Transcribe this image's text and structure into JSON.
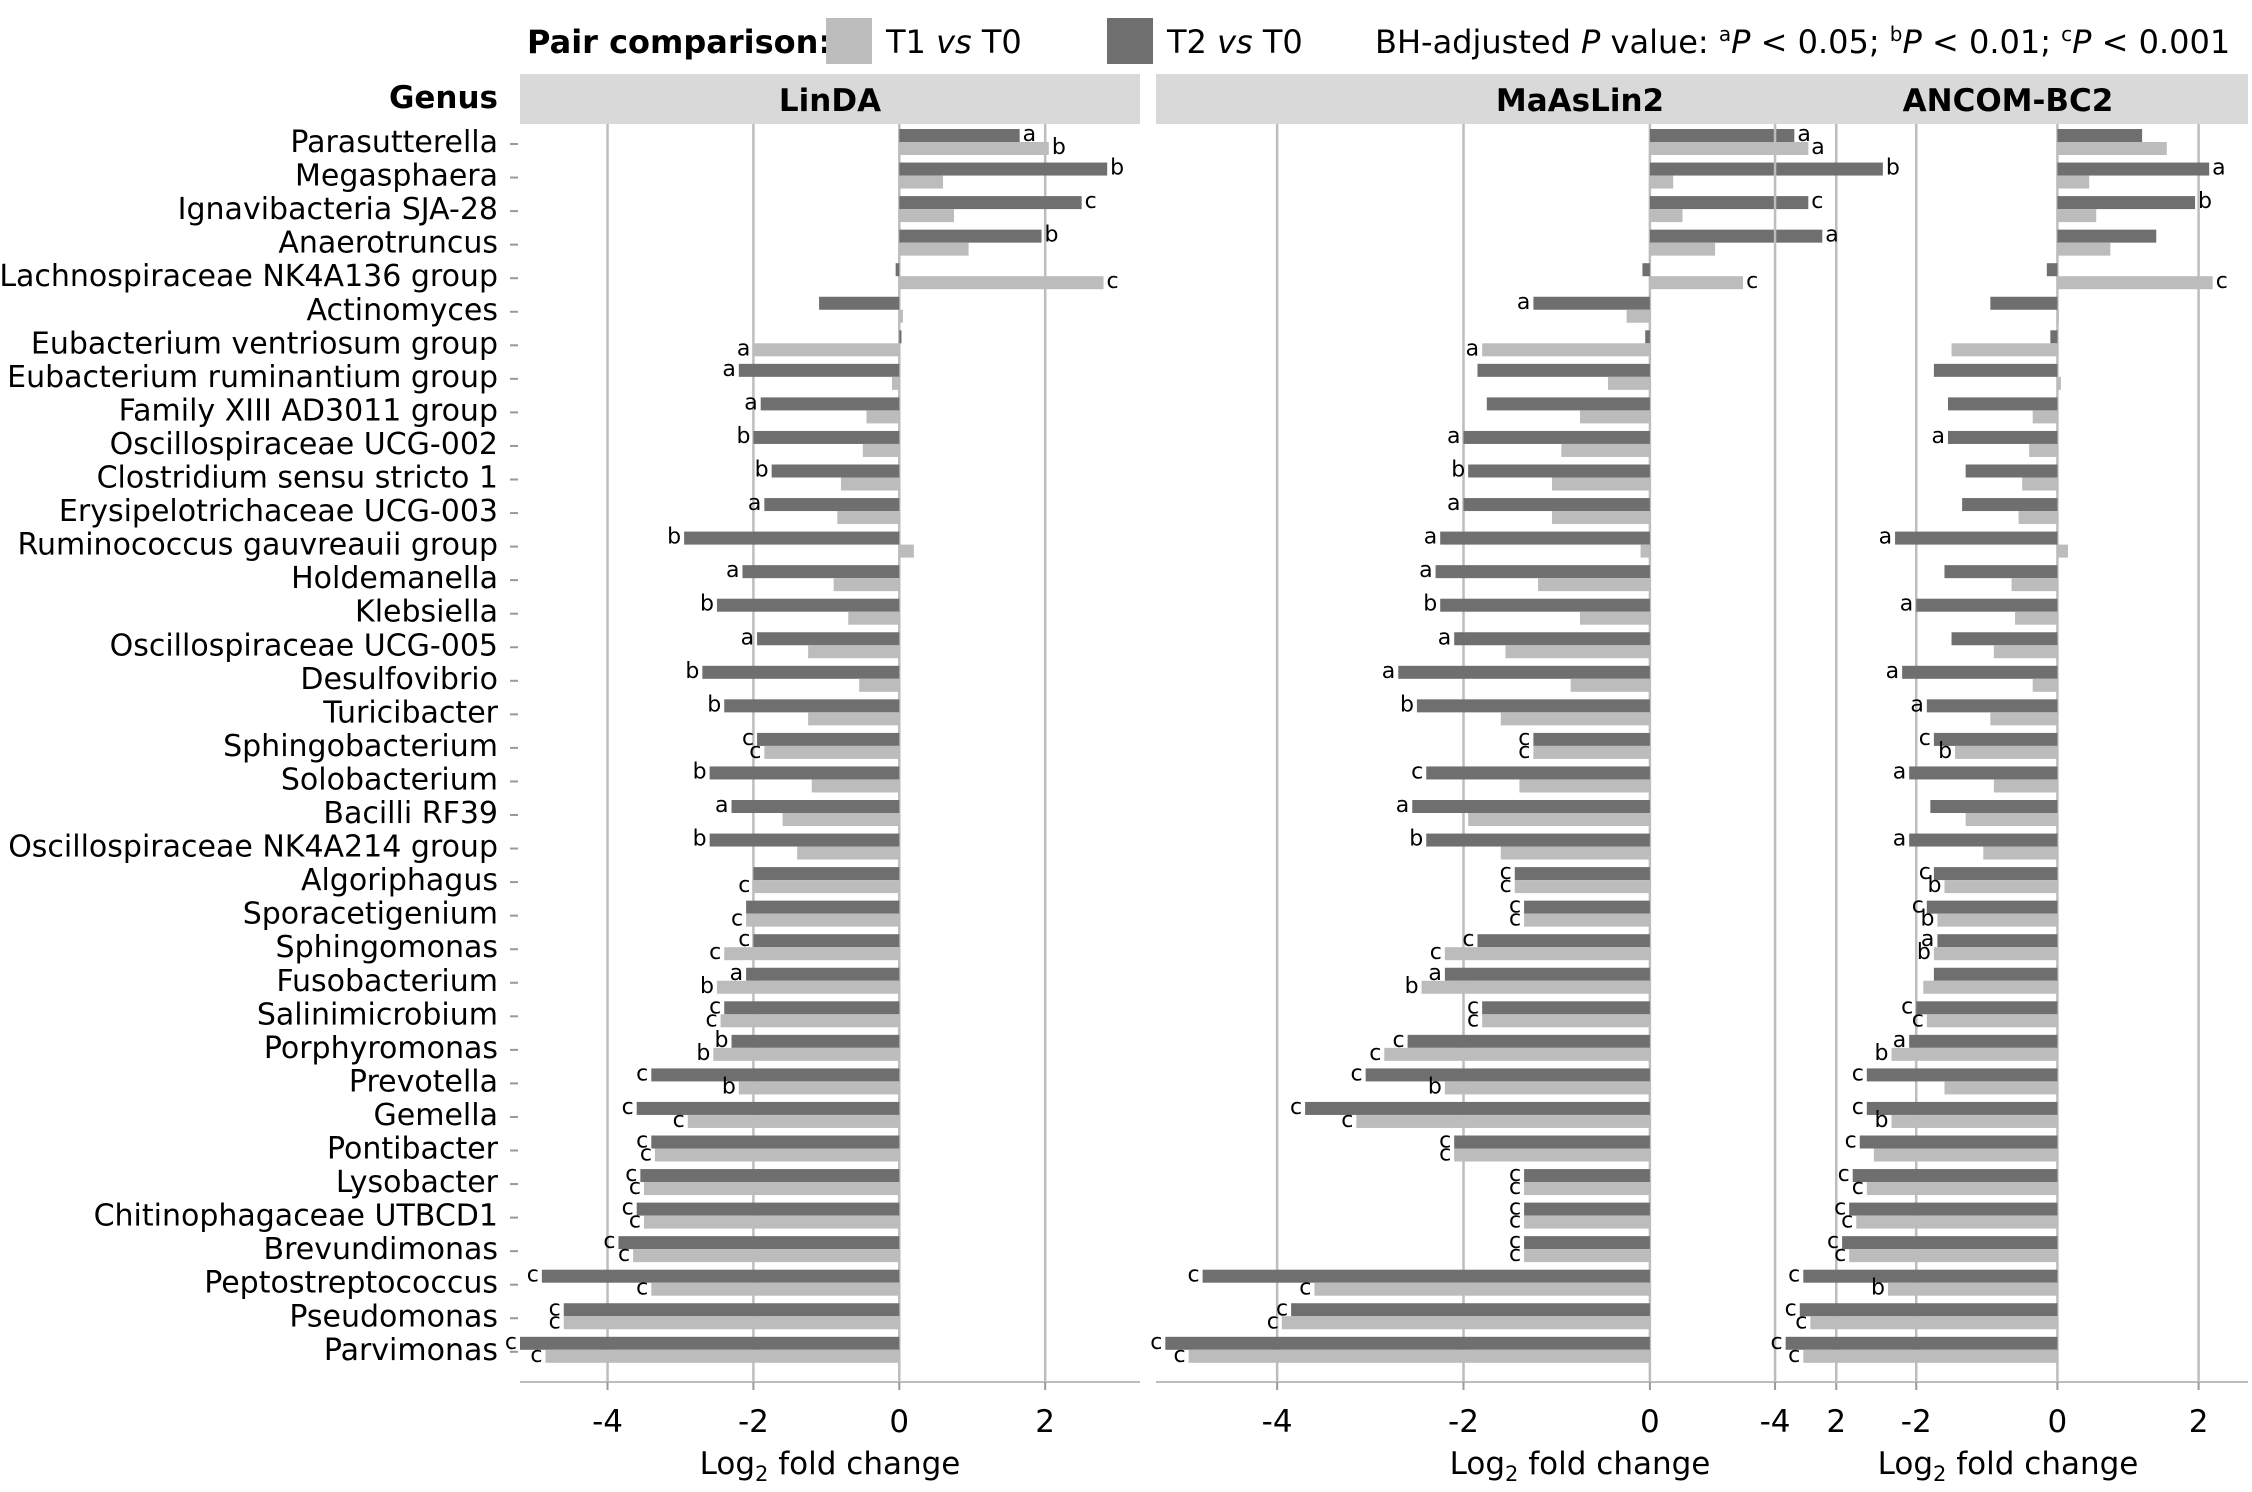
{
  "legend": {
    "title": "Pair comparison:",
    "series": [
      {
        "label_pre": "T1 ",
        "label_vs": "vs",
        "label_post": " T0",
        "color": "#bcbcbc"
      },
      {
        "label_pre": "T2 ",
        "label_vs": "vs",
        "label_post": " T0",
        "color": "#6f6f6f"
      }
    ],
    "note_pre": "BH-adjusted ",
    "note_p": "P",
    "note_value": " value: ",
    "note_items": [
      {
        "sup": "a",
        "p": "P",
        "text": " < 0.05;"
      },
      {
        "sup": "b",
        "p": "P",
        "text": " < 0.01;"
      },
      {
        "sup": "c",
        "p": "P",
        "text": " < 0.001"
      }
    ]
  },
  "genus_header": "Genus",
  "xlabel": "Log",
  "xlabel_sub": "2",
  "xlabel_rest": " fold change",
  "chart_data": {
    "type": "bar",
    "orientation": "horizontal",
    "grid": true,
    "categories": [
      "Parasutterella",
      "Megasphaera",
      "Ignavibacteria SJA-28",
      "Anaerotruncus",
      "Lachnospiraceae NK4A136 group",
      "Actinomyces",
      "Eubacterium ventriosum group",
      "Eubacterium ruminantium group",
      "Family XIII AD3011 group",
      "Oscillospiraceae UCG-002",
      "Clostridium sensu stricto 1",
      "Erysipelotrichaceae UCG-003",
      "Ruminococcus gauvreauii group",
      "Holdemanella",
      "Klebsiella",
      "Oscillospiraceae UCG-005",
      "Desulfovibrio",
      "Turicibacter",
      "Sphingobacterium",
      "Solobacterium",
      "Bacilli RF39",
      "Oscillospiraceae NK4A214 group",
      "Algoriphagus",
      "Sporacetigenium",
      "Sphingomonas",
      "Fusobacterium",
      "Salinimicrobium",
      "Porphyromonas",
      "Prevotella",
      "Gemella",
      "Pontibacter",
      "Lysobacter",
      "Chitinophagaceae UTBCD1",
      "Brevundimonas",
      "Peptostreptococcus",
      "Pseudomonas",
      "Parvimonas"
    ],
    "panels": [
      {
        "title": "LinDA",
        "xlim": [
          -5.2,
          3.3
        ],
        "ticks": [
          -4,
          -2,
          0,
          2
        ],
        "tick_labels": [
          "-4",
          "-2",
          "0",
          "2"
        ],
        "series": [
          {
            "name": "T2 vs T0",
            "values": [
              1.65,
              2.85,
              2.5,
              1.95,
              -0.05,
              -1.1,
              0.03,
              -2.2,
              -1.9,
              -2.0,
              -1.75,
              -1.85,
              -2.95,
              -2.15,
              -2.5,
              -1.95,
              -2.7,
              -2.4,
              -1.95,
              -2.6,
              -2.3,
              -2.6,
              -2.0,
              -2.1,
              -2.0,
              -2.1,
              -2.4,
              -2.3,
              -3.4,
              -3.6,
              -3.4,
              -3.55,
              -3.6,
              -3.85,
              -4.9,
              -4.6,
              -5.2
            ],
            "sig": [
              "a",
              "b",
              "c",
              "b",
              "",
              "",
              "",
              "a",
              "a",
              "b",
              "b",
              "a",
              "b",
              "a",
              "b",
              "a",
              "b",
              "b",
              "c",
              "b",
              "a",
              "b",
              "",
              "",
              "c",
              "a",
              "c",
              "b",
              "c",
              "c",
              "c",
              "c",
              "c",
              "c",
              "c",
              "c",
              "c"
            ]
          },
          {
            "name": "T1 vs T0",
            "values": [
              2.05,
              0.6,
              0.75,
              0.95,
              2.8,
              0.05,
              -2.0,
              -0.1,
              -0.45,
              -0.5,
              -0.8,
              -0.85,
              0.2,
              -0.9,
              -0.7,
              -1.25,
              -0.55,
              -1.25,
              -1.85,
              -1.2,
              -1.6,
              -1.4,
              -2.0,
              -2.1,
              -2.4,
              -2.5,
              -2.45,
              -2.55,
              -2.2,
              -2.9,
              -3.35,
              -3.5,
              -3.5,
              -3.65,
              -3.4,
              -4.6,
              -4.85
            ],
            "sig": [
              "b",
              "",
              "",
              "",
              "c",
              "",
              "a",
              "",
              "",
              "",
              "",
              "",
              "",
              "",
              "",
              "",
              "",
              "",
              "c",
              "",
              "",
              "",
              "c",
              "c",
              "c",
              "b",
              "c",
              "b",
              "b",
              "c",
              "c",
              "c",
              "c",
              "c",
              "c",
              "c",
              "c"
            ]
          }
        ]
      },
      {
        "title": "MaAsLin2",
        "xlim": [
          -5.3,
          3.8
        ],
        "ticks": [
          -4,
          -2,
          0,
          2
        ],
        "tick_labels": [
          "-4",
          "-2",
          "0",
          "2"
        ],
        "series": [
          {
            "name": "T2 vs T0",
            "values": [
              1.55,
              2.5,
              1.7,
              1.85,
              -0.08,
              -1.25,
              -0.05,
              -1.85,
              -1.75,
              -2.0,
              -1.95,
              -2.0,
              -2.25,
              -2.3,
              -2.25,
              -2.1,
              -2.7,
              -2.5,
              -1.25,
              -2.4,
              -2.55,
              -2.4,
              -1.45,
              -1.35,
              -1.85,
              -2.2,
              -1.8,
              -2.6,
              -3.05,
              -3.7,
              -2.1,
              -1.35,
              -1.35,
              -1.35,
              -4.8,
              -3.85,
              -5.2
            ],
            "sig": [
              "a",
              "b",
              "c",
              "a",
              "",
              "a",
              "",
              "",
              "",
              "a",
              "b",
              "a",
              "a",
              "a",
              "b",
              "a",
              "a",
              "b",
              "c",
              "c",
              "a",
              "b",
              "c",
              "c",
              "c",
              "a",
              "c",
              "c",
              "c",
              "c",
              "c",
              "c",
              "c",
              "c",
              "c",
              "c",
              "c"
            ]
          },
          {
            "name": "T1 vs T0",
            "values": [
              1.7,
              0.25,
              0.35,
              0.7,
              1.0,
              -0.25,
              -1.8,
              -0.45,
              -0.75,
              -0.95,
              -1.05,
              -1.05,
              -0.1,
              -1.2,
              -0.75,
              -1.55,
              -0.85,
              -1.6,
              -1.25,
              -1.4,
              -1.95,
              -1.6,
              -1.45,
              -1.35,
              -2.2,
              -2.45,
              -1.8,
              -2.85,
              -2.2,
              -3.15,
              -2.1,
              -1.35,
              -1.35,
              -1.35,
              -3.6,
              -3.95,
              -4.95
            ],
            "sig": [
              "a",
              "",
              "",
              "",
              "c",
              "",
              "a",
              "",
              "",
              "",
              "",
              "",
              "",
              "",
              "",
              "",
              "",
              "",
              "c",
              "",
              "",
              "",
              "c",
              "c",
              "c",
              "b",
              "c",
              "c",
              "b",
              "c",
              "c",
              "c",
              "c",
              "c",
              "c",
              "c",
              "c"
            ]
          }
        ]
      },
      {
        "title": "ANCOM-BC2",
        "xlim": [
          -4.1,
          2.7
        ],
        "ticks": [
          -4,
          -2,
          0,
          2
        ],
        "tick_labels": [
          "-4",
          "-2",
          "0",
          "2"
        ],
        "series": [
          {
            "name": "T2 vs T0",
            "values": [
              1.2,
              2.15,
              1.95,
              1.4,
              -0.15,
              -0.95,
              -0.1,
              -1.75,
              -1.55,
              -1.55,
              -1.3,
              -1.35,
              -2.3,
              -1.6,
              -2.0,
              -1.5,
              -2.2,
              -1.85,
              -1.75,
              -2.1,
              -1.8,
              -2.1,
              -1.75,
              -1.85,
              -1.7,
              -1.75,
              -2.0,
              -2.1,
              -2.7,
              -2.7,
              -2.8,
              -2.9,
              -2.95,
              -3.05,
              -3.6,
              -3.65,
              -3.85
            ],
            "sig": [
              "",
              "a",
              "b",
              "",
              "",
              "",
              "",
              "",
              "",
              "a",
              "",
              "",
              "a",
              "",
              "a",
              "",
              "a",
              "a",
              "c",
              "a",
              "",
              "a",
              "c",
              "c",
              "a",
              "",
              "c",
              "a",
              "c",
              "c",
              "c",
              "c",
              "c",
              "c",
              "c",
              "c",
              "c"
            ]
          },
          {
            "name": "T1 vs T0",
            "values": [
              1.55,
              0.45,
              0.55,
              0.75,
              2.2,
              0.0,
              -1.5,
              0.05,
              -0.35,
              -0.4,
              -0.5,
              -0.55,
              0.15,
              -0.65,
              -0.6,
              -0.9,
              -0.35,
              -0.95,
              -1.45,
              -0.9,
              -1.3,
              -1.05,
              -1.6,
              -1.7,
              -1.75,
              -1.9,
              -1.85,
              -2.35,
              -1.6,
              -2.35,
              -2.6,
              -2.7,
              -2.85,
              -2.95,
              -2.4,
              -3.5,
              -3.6
            ],
            "sig": [
              "",
              "",
              "",
              "",
              "c",
              "",
              "",
              "",
              "",
              "",
              "",
              "",
              "",
              "",
              "",
              "",
              "",
              "",
              "b",
              "",
              "",
              "",
              "b",
              "b",
              "b",
              "",
              "c",
              "b",
              "",
              "b",
              "",
              "c",
              "c",
              "c",
              "b",
              "c",
              "c"
            ]
          }
        ]
      }
    ]
  }
}
